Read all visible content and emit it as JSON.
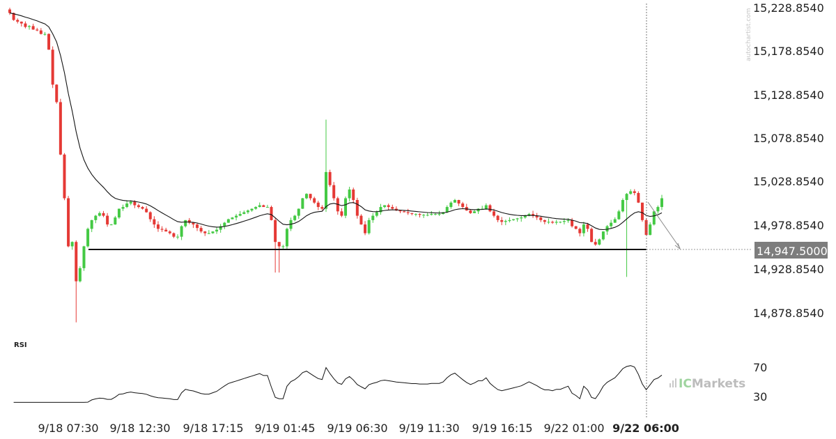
{
  "watermark": "autochartist.com",
  "brand": {
    "prefix": "IC",
    "name": "Markets"
  },
  "chart_data": {
    "type": "candlestick",
    "price_axis": {
      "ticks": [
        "15,228.8540",
        "15,178.8540",
        "15,128.8540",
        "15,078.8540",
        "15,028.8540",
        "14,978.8540",
        "14,928.8540",
        "14,878.8540"
      ],
      "tick_values": [
        15228.854,
        15178.854,
        15128.854,
        15078.854,
        15028.854,
        14978.854,
        14928.854,
        14878.854
      ]
    },
    "support": {
      "value": 14947.5,
      "label": "14,947.5000"
    },
    "time_axis": {
      "labels": [
        "9/18 07:30",
        "9/18 12:30",
        "9/18 17:15",
        "9/19 01:45",
        "9/19 06:30",
        "9/19 11:30",
        "9/19 16:15",
        "9/22 01:00",
        "9/22 06:00"
      ],
      "current": "9/22 06:00"
    },
    "series": [
      {
        "name": "",
        "type": "candlestick",
        "close": [
          15222,
          15214,
          15212,
          15210,
          15206,
          15207,
          15203,
          15202,
          15198,
          15198,
          15180,
          15140,
          15120,
          15060,
          15010,
          14955,
          14960,
          14915,
          14930,
          14955,
          14975,
          14985,
          14990,
          14993,
          14990,
          14980,
          14980,
          14988,
          14998,
          15000,
          15004,
          15006,
          15002,
          15000,
          14998,
          14994,
          14986,
          14980,
          14975,
          14974,
          14972,
          14970,
          14966,
          14966,
          14978,
          14985,
          14982,
          14980,
          14976,
          14972,
          14970,
          14970,
          14972,
          14974,
          14978,
          14982,
          14986,
          14988,
          14990,
          14992,
          14994,
          14996,
          14998,
          15000,
          15002,
          15000,
          15000,
          14985,
          14960,
          14955,
          14955,
          14975,
          14985,
          14990,
          14998,
          15010,
          15015,
          15010,
          15005,
          15000,
          14998,
          15040,
          15025,
          15010,
          14995,
          14990,
          15010,
          15020,
          15008,
          14990,
          14980,
          14970,
          14985,
          14990,
          14994,
          15000,
          15002,
          15000,
          14998,
          14996,
          14995,
          14994,
          14993,
          14992,
          14992,
          14991,
          14991,
          14991,
          14992,
          14992,
          14992,
          14994,
          15000,
          15005,
          15008,
          15004,
          15000,
          14996,
          14993,
          14995,
          14998,
          14998,
          15002,
          14995,
          14990,
          14985,
          14983,
          14984,
          14985,
          14986,
          14987,
          14988,
          14990,
          14992,
          14990,
          14988,
          14985,
          14983,
          14983,
          14982,
          14983,
          14983,
          14984,
          14985,
          14978,
          14975,
          14970,
          14980,
          14975,
          14960,
          14957,
          14963,
          14972,
          14978,
          14982,
          14986,
          14995,
          15008,
          15015,
          15018,
          15016,
          15005,
          14985,
          14968,
          14980,
          14995,
          15000,
          15010
        ],
        "high_extremes": {
          "max": 15100,
          "min": 14868
        }
      }
    ],
    "moving_average": {
      "name": "",
      "type": "line"
    },
    "rsi": {
      "title": "RSI",
      "levels": [
        "70",
        "30"
      ],
      "level_values": [
        70,
        30
      ]
    }
  }
}
